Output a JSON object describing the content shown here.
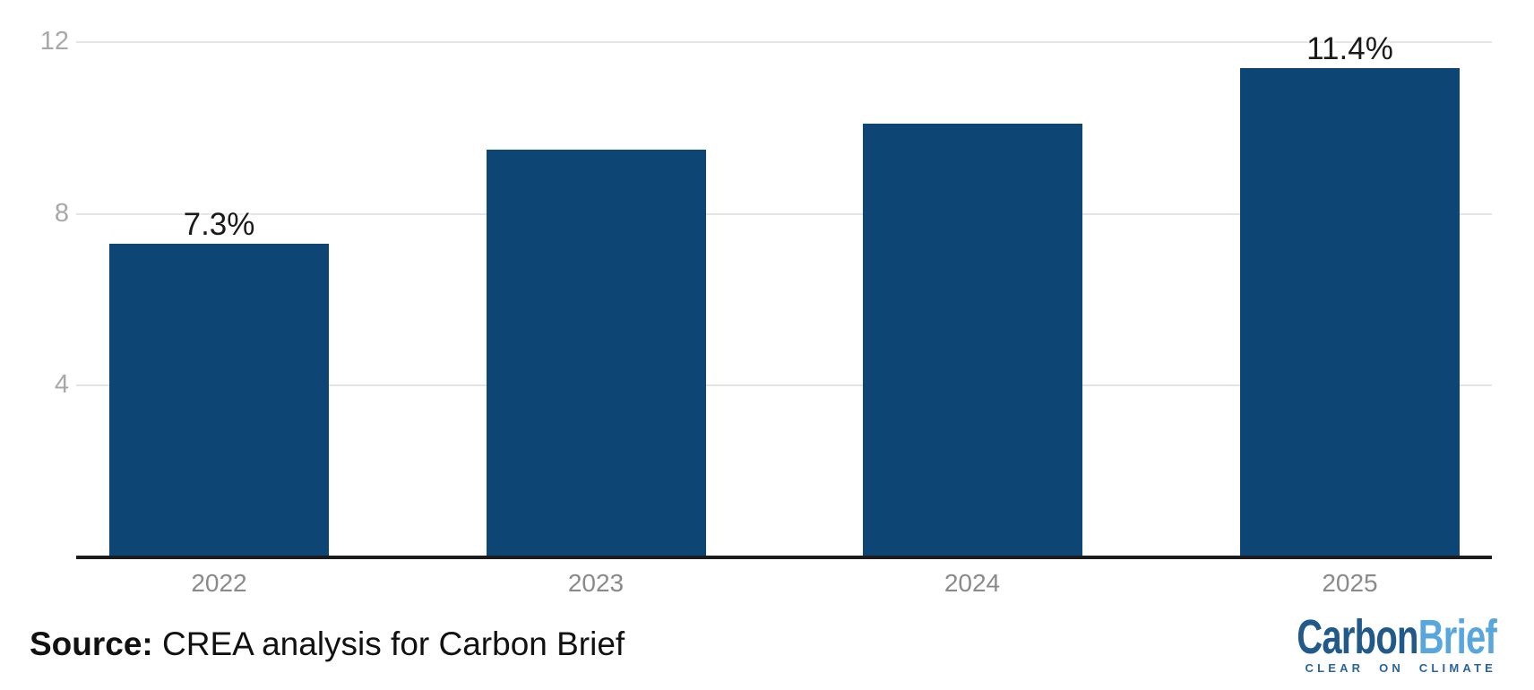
{
  "chart_data": {
    "type": "bar",
    "categories": [
      "2022",
      "2023",
      "2024",
      "2025"
    ],
    "values": [
      7.3,
      9.5,
      10.1,
      11.4
    ],
    "data_labels": [
      "7.3%",
      "",
      "",
      "11.4%"
    ],
    "unit": "%",
    "yticks": [
      4,
      8,
      12
    ],
    "ylim": [
      0,
      12.6
    ],
    "grid": true,
    "legend": "none",
    "bar_color": "#0d4574",
    "grid_color": "#e4e4e4",
    "axis_line_color": "#1c1c1c",
    "ytick_color": "#a8a8a8",
    "xtick_color": "#8a8a8a",
    "data_label_color": "#1a1a1a"
  },
  "footer": {
    "source_label": "Source:",
    "source_text": " CREA analysis for Carbon Brief",
    "logo": {
      "part1": "Carbon",
      "part2": "Brief",
      "tagline": "CLEAR ON CLIMATE",
      "part1_color": "#20598a",
      "part2_color": "#57a7de",
      "tagline_color": "#27659b"
    }
  }
}
